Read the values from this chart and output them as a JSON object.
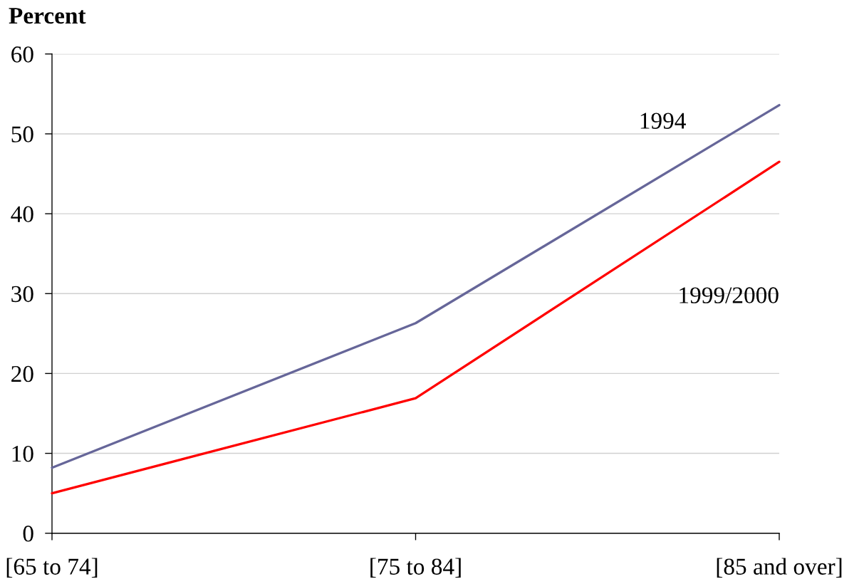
{
  "chart_data": {
    "type": "line",
    "ylabel": "Percent",
    "categories": [
      "[65 to 74]",
      "[75 to 84]",
      "[85 and over]"
    ],
    "series": [
      {
        "name": "1994",
        "color": "#666699",
        "values": [
          8.2,
          26.3,
          53.6
        ]
      },
      {
        "name": "1999/2000",
        "color": "#ff0000",
        "values": [
          5.0,
          16.9,
          46.5
        ]
      }
    ],
    "ylim": [
      0,
      60
    ],
    "yticks": [
      0,
      10,
      20,
      30,
      40,
      50,
      60
    ],
    "grid": "y",
    "marker": "none",
    "line_style": "solid"
  }
}
